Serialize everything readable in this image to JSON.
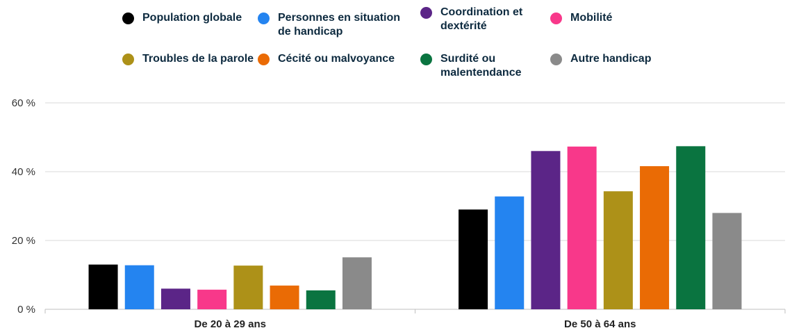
{
  "chart_data": {
    "type": "bar",
    "categories": [
      "De 20 à 29 ans",
      "De 50 à 64 ans"
    ],
    "series": [
      {
        "name": "Population globale",
        "color": "#000000",
        "values": [
          13,
          29
        ]
      },
      {
        "name": "Personnes en situation de handicap",
        "color": "#2484f0",
        "values": [
          12.8,
          32.8
        ]
      },
      {
        "name": "Coordination et dextérité",
        "color": "#5b2587",
        "values": [
          6,
          46
        ]
      },
      {
        "name": "Mobilité",
        "color": "#f8388a",
        "values": [
          5.7,
          47.3
        ]
      },
      {
        "name": "Troubles de la parole",
        "color": "#ad9118",
        "values": [
          12.7,
          34.3
        ]
      },
      {
        "name": "Cécité ou malvoyance",
        "color": "#ea6b05",
        "values": [
          6.9,
          41.6
        ]
      },
      {
        "name": "Surdité ou malentendance",
        "color": "#0a7440",
        "values": [
          5.5,
          47.4
        ]
      },
      {
        "name": "Autre handicap",
        "color": "#8a8a8a",
        "values": [
          15.1,
          28
        ]
      }
    ],
    "yticks": [
      0,
      20,
      40,
      60
    ],
    "ytick_labels": [
      "0 %",
      "20 %",
      "40 %",
      "60 %"
    ],
    "ylim": [
      0,
      60
    ],
    "grid": true,
    "legend_position": "top",
    "title": "",
    "xlabel": "",
    "ylabel": ""
  }
}
